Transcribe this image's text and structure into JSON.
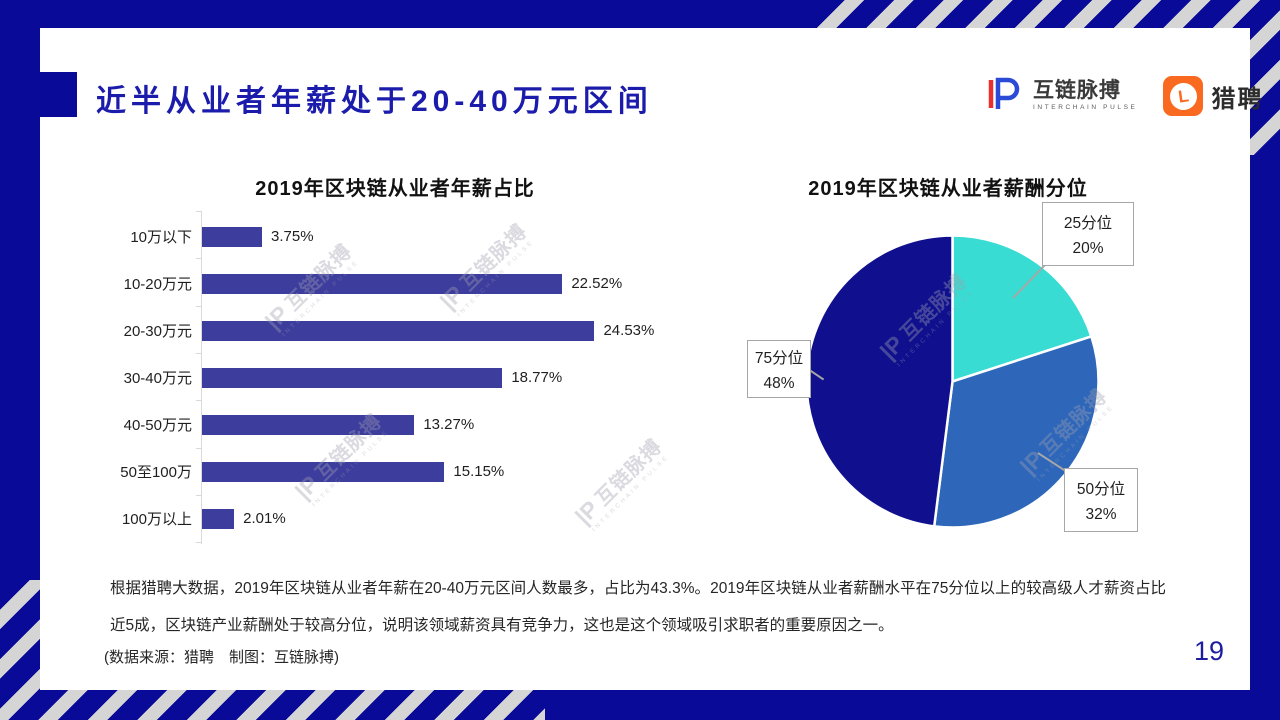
{
  "slide": {
    "title": "近半从业者年薪处于20-40万元区间",
    "page_number": "19",
    "body_paragraph": "根据猎聘大数据，2019年区块链从业者年薪在20-40万元区间人数最多，占比为43.3%。2019年区块链从业者薪酬水平在75分位以上的较高级人才薪资占比近5成，区块链产业薪酬处于较高分位，说明该领域薪资具有竞争力，这也是这个领域吸引求职者的重要原因之一。",
    "source_note": "(数据来源：猎聘　制图：互链脉搏)"
  },
  "brands": {
    "interchain_pulse": {
      "name": "互链脉搏",
      "subtitle": "INTERCHAIN PULSE"
    },
    "liepin": {
      "name": "猎聘",
      "mark": "L",
      "accent_color": "#f96a20"
    }
  },
  "watermark": {
    "mark": "|P",
    "name": "互链脉搏",
    "subtitle": "INTERCHAIN PULSE"
  },
  "chart_data": [
    {
      "type": "bar",
      "orientation": "horizontal",
      "title": "2019年区块链从业者年薪占比",
      "categories": [
        "10万以下",
        "10-20万元",
        "20-30万元",
        "30-40万元",
        "40-50万元",
        "50至100万",
        "100万以上"
      ],
      "values": [
        3.75,
        22.52,
        24.53,
        18.77,
        13.27,
        15.15,
        2.01
      ],
      "value_labels": [
        "3.75%",
        "22.52%",
        "24.53%",
        "18.77%",
        "13.27%",
        "15.15%",
        "2.01%"
      ],
      "bar_color": "#3d3d9e",
      "xlim": [
        0,
        26
      ],
      "grid": false
    },
    {
      "type": "pie",
      "title": "2019年区块链从业者薪酬分位",
      "start_angle_deg": 0,
      "direction": "clockwise",
      "slices": [
        {
          "label": "25分位",
          "pct_label": "20%",
          "value": 20,
          "color": "#38dcd2"
        },
        {
          "label": "50分位",
          "pct_label": "32%",
          "value": 32,
          "color": "#2e67ba"
        },
        {
          "label": "75分位",
          "pct_label": "48%",
          "value": 48,
          "color": "#10108e"
        }
      ]
    }
  ]
}
